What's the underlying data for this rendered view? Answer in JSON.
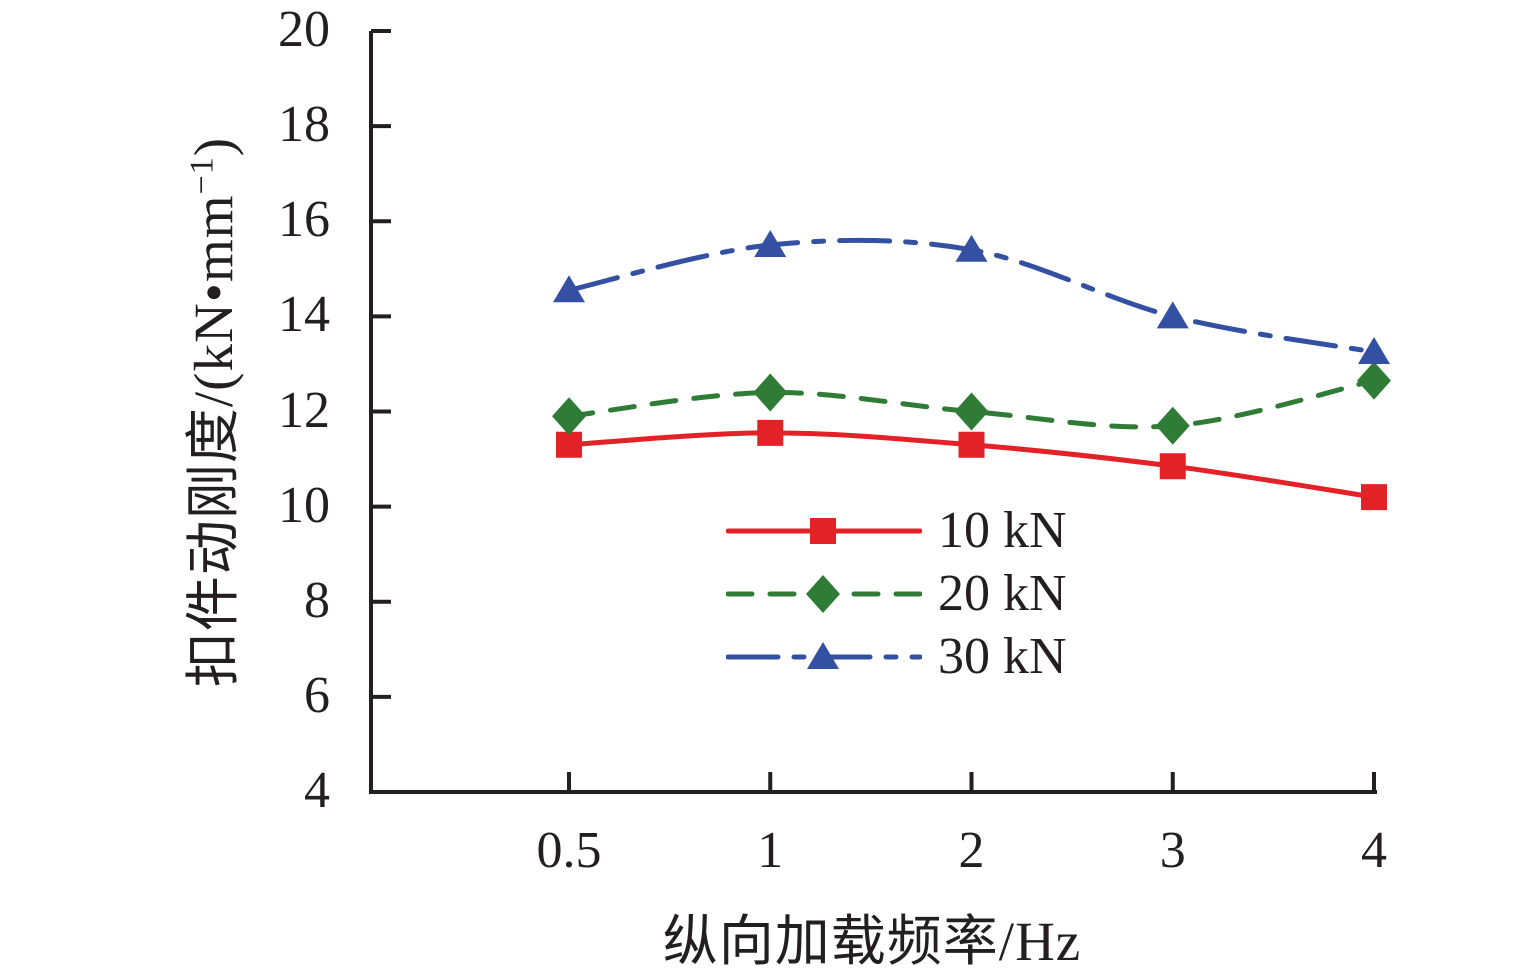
{
  "figure": {
    "background": "#ffffff",
    "text_color": "#231f20",
    "axis_color": "#231f20"
  },
  "chart_data": {
    "type": "line",
    "title": "",
    "xlabel": "纵向加载频率/Hz",
    "ylabel": "扣件动刚度/(kN•mm⁻¹)",
    "ylabel_parts": {
      "prefix": "扣件动刚度/(kN•mm",
      "superscript": "−1",
      "suffix": ")"
    },
    "x_categories": [
      "0.5",
      "1",
      "2",
      "3",
      "4"
    ],
    "y_ticks": [
      "20",
      "18",
      "16",
      "14",
      "12",
      "10",
      "8",
      "6",
      "4"
    ],
    "y_tick_values": [
      20,
      18,
      16,
      14,
      12,
      10,
      8,
      6,
      4
    ],
    "ylim": [
      4,
      20
    ],
    "grid": false,
    "legend_position": "inside lower-center, no border",
    "series": [
      {
        "name": "10 kN",
        "color": "#e32228",
        "line_style": "solid",
        "marker": "square",
        "values": [
          11.3,
          11.55,
          11.3,
          10.85,
          10.2
        ]
      },
      {
        "name": "20 kN",
        "color": "#2e7c35",
        "line_style": "dashed",
        "marker": "diamond",
        "values": [
          11.9,
          12.4,
          12.0,
          11.7,
          12.65
        ]
      },
      {
        "name": "30 kN",
        "color": "#3350a2",
        "line_style": "dash-dot",
        "marker": "triangle",
        "values": [
          14.55,
          15.5,
          15.4,
          14.0,
          13.25
        ]
      }
    ]
  }
}
